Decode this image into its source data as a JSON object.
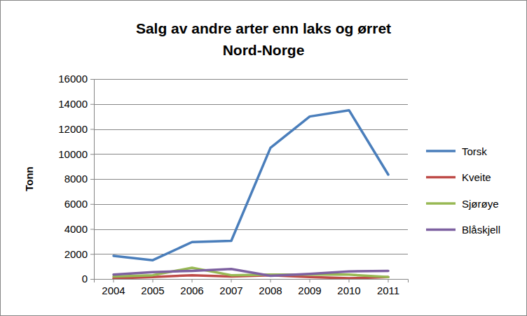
{
  "chart_data": {
    "type": "line",
    "title": "Salg av andre arter enn laks og ørret",
    "subtitle": "Nord-Norge",
    "y_label": "Tonn",
    "categories": [
      "2004",
      "2005",
      "2006",
      "2007",
      "2008",
      "2009",
      "2010",
      "2011"
    ],
    "series": [
      {
        "name": "Torsk",
        "color": "#4a7ebb",
        "values": [
          1850,
          1500,
          2950,
          3050,
          10500,
          13000,
          13500,
          8350
        ]
      },
      {
        "name": "Kveite",
        "color": "#be4b48",
        "values": [
          50,
          150,
          300,
          200,
          300,
          150,
          50,
          150
        ]
      },
      {
        "name": "Sjørøye",
        "color": "#98b954",
        "values": [
          200,
          300,
          900,
          300,
          350,
          350,
          350,
          150
        ]
      },
      {
        "name": "Blåskjell",
        "color": "#7d60a0",
        "values": [
          350,
          550,
          650,
          800,
          250,
          400,
          600,
          650
        ]
      }
    ],
    "ylim": [
      0,
      16000
    ],
    "yticks": [
      0,
      2000,
      4000,
      6000,
      8000,
      10000,
      12000,
      14000,
      16000
    ],
    "grid": true,
    "legend": "right"
  }
}
